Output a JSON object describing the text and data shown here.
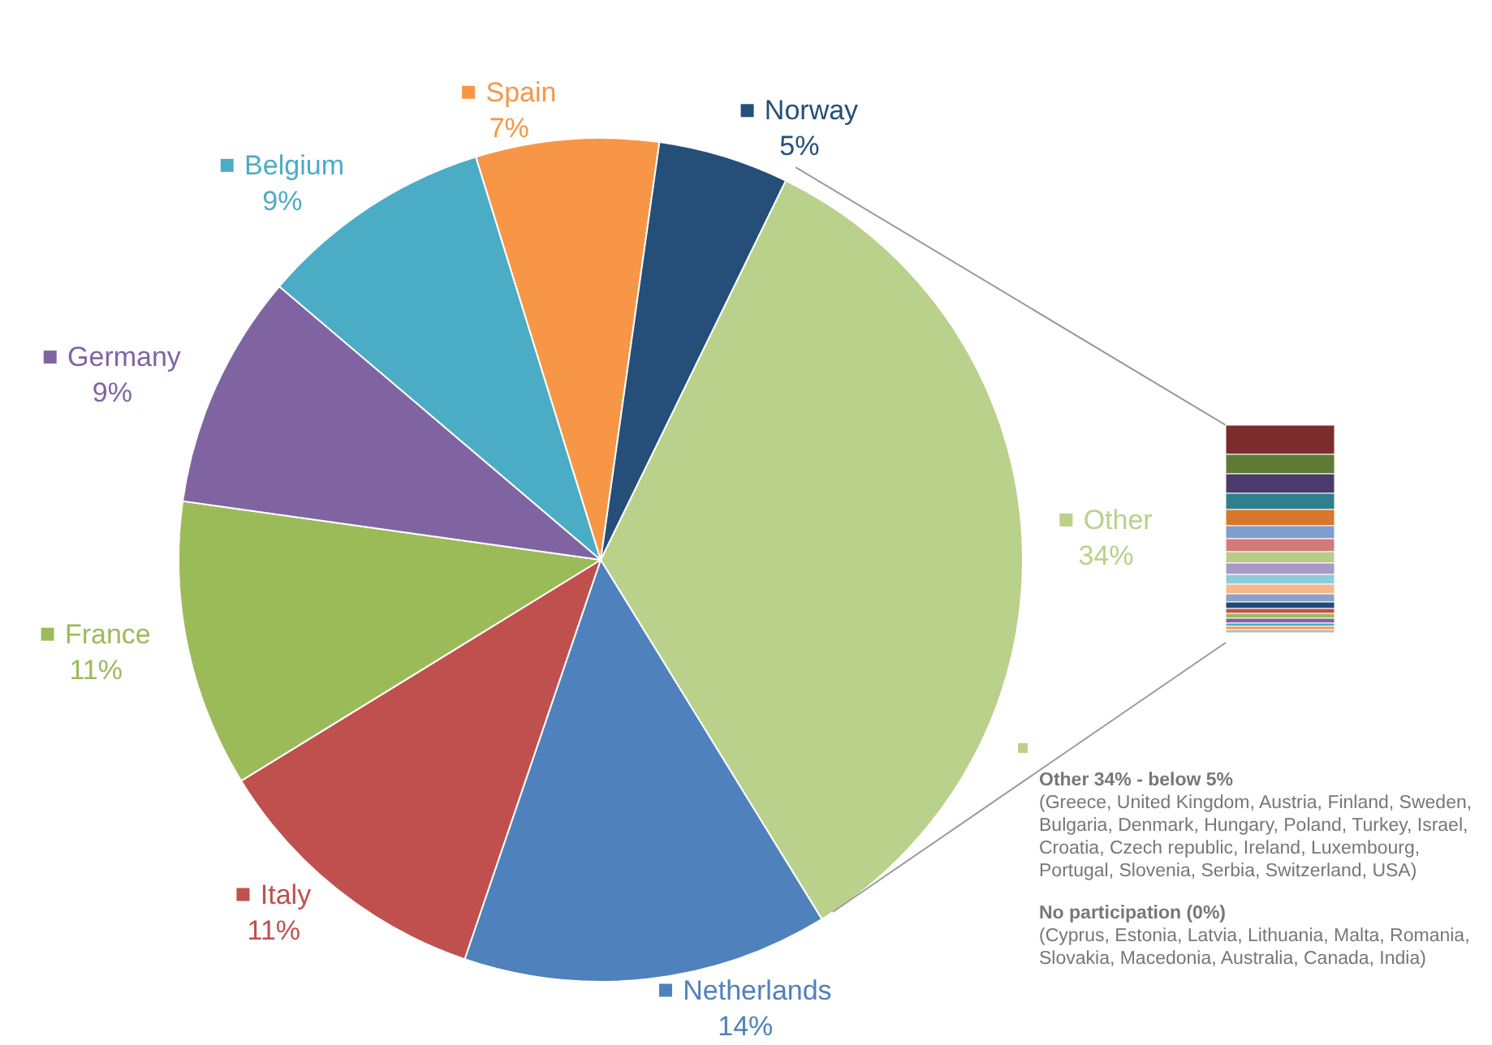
{
  "chart_data": {
    "type": "pie",
    "categories": [
      "Other",
      "Netherlands",
      "Italy",
      "France",
      "Germany",
      "Belgium",
      "Spain",
      "Norway"
    ],
    "values": [
      34,
      14,
      11,
      11,
      9,
      9,
      7,
      5
    ],
    "colors": [
      "#b9d18b",
      "#4f81bd",
      "#c0504d",
      "#9bbb59",
      "#8064a2",
      "#4bacc6",
      "#f79646",
      "#254e78"
    ],
    "annotations": [
      "Other 34% - below 5%",
      "(Greece, United Kingdom, Austria, Finland, Sweden, Bulgaria, Denmark, Hungary, Poland, Turkey, Israel, Croatia, Czech republic, Ireland, Luxembourg, Portugal, Slovenia, Serbia, Switzerland, USA)",
      "No participation (0%)",
      "(Cyprus, Estonia, Latvia, Lithuania, Malta, Romania, Slovakia, Macedonia, Australia, Canada, India)"
    ],
    "legend": "top left",
    "value_labels": [
      "34%",
      "14%",
      "11%",
      "11%",
      "9%",
      "9%",
      "7%",
      "5%"
    ]
  }
}
